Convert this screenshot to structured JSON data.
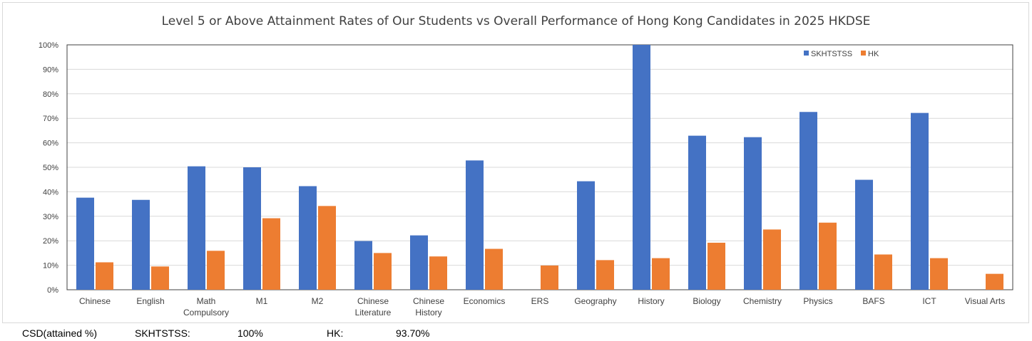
{
  "chart_data": {
    "type": "bar",
    "title": "Level 5 or Above Attainment Rates of Our Students vs Overall Performance of Hong Kong Candidates in 2025 HKDSE",
    "categories": [
      [
        "Chinese"
      ],
      [
        "English"
      ],
      [
        "Math",
        "Compulsory"
      ],
      [
        "M1"
      ],
      [
        "M2"
      ],
      [
        "Chinese",
        "Literature"
      ],
      [
        "Chinese",
        "History"
      ],
      [
        "Economics"
      ],
      [
        "ERS"
      ],
      [
        "Geography"
      ],
      [
        "History"
      ],
      [
        "Biology"
      ],
      [
        "Chemistry"
      ],
      [
        "Physics"
      ],
      [
        "BAFS"
      ],
      [
        "ICT"
      ],
      [
        "Visual Arts"
      ]
    ],
    "series": [
      {
        "name": "SKHTSTSS",
        "color": "#4472c4",
        "values": [
          37.6,
          36.7,
          50.4,
          50.0,
          42.3,
          19.9,
          22.2,
          52.8,
          0,
          44.3,
          100.0,
          62.9,
          62.3,
          72.6,
          44.9,
          72.2,
          0
        ]
      },
      {
        "name": "HK",
        "color": "#ed7d31",
        "values": [
          11.2,
          9.5,
          15.9,
          29.2,
          34.2,
          15.0,
          13.6,
          16.7,
          9.9,
          12.1,
          12.9,
          19.2,
          24.6,
          27.4,
          14.4,
          12.9,
          6.5
        ]
      }
    ],
    "ylim": [
      0,
      100
    ],
    "yticks": [
      "0%",
      "10%",
      "20%",
      "30%",
      "40%",
      "50%",
      "60%",
      "70%",
      "80%",
      "90%",
      "100%"
    ],
    "grid": true,
    "legend": "top-right"
  },
  "footer": {
    "label": "CSD(attained %)",
    "school_label": "SKHTSTSS:",
    "school_value": "100%",
    "hk_label": "HK:",
    "hk_value": "93.70%"
  }
}
